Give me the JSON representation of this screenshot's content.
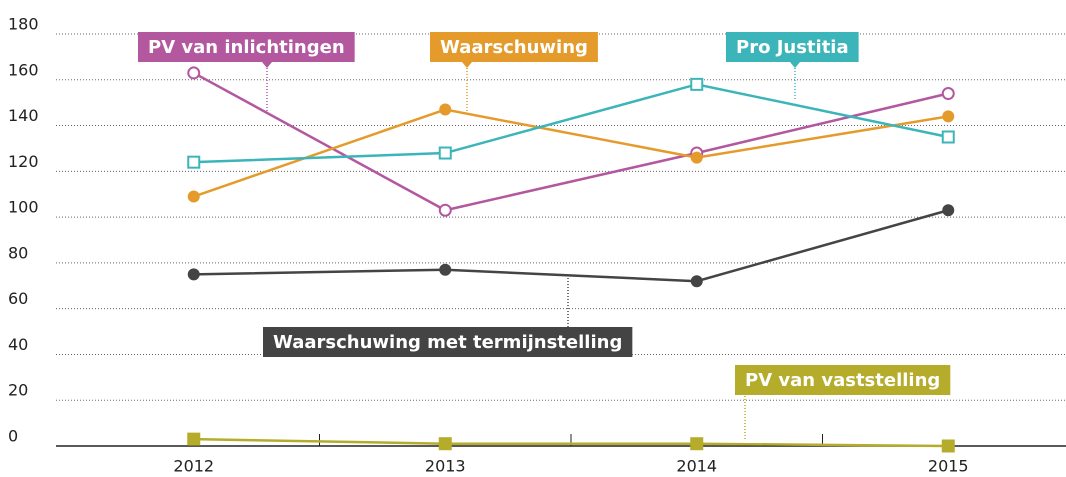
{
  "chart_data": {
    "type": "line",
    "categories": [
      "2012",
      "2013",
      "2014",
      "2015"
    ],
    "series": [
      {
        "name": "PV van inlichtingen",
        "color": "#b3579f",
        "marker": "open-circle",
        "values": [
          163,
          103,
          128,
          154
        ]
      },
      {
        "name": "Waarschuwing",
        "color": "#e59b2b",
        "marker": "circle",
        "values": [
          109,
          147,
          126,
          144
        ]
      },
      {
        "name": "Pro Justitia",
        "color": "#3bb5b9",
        "marker": "open-square",
        "values": [
          124,
          128,
          158,
          135
        ]
      },
      {
        "name": "Waarschuwing met termijnstelling",
        "color": "#444444",
        "marker": "circle",
        "values": [
          75,
          77,
          72,
          103
        ]
      },
      {
        "name": "PV van vaststelling",
        "color": "#b5ac2b",
        "marker": "square",
        "values": [
          3,
          1,
          1,
          0
        ]
      }
    ],
    "ylim": [
      0,
      180
    ],
    "yticks": [
      0,
      20,
      40,
      60,
      80,
      100,
      120,
      140,
      160,
      180
    ],
    "grid": true
  }
}
